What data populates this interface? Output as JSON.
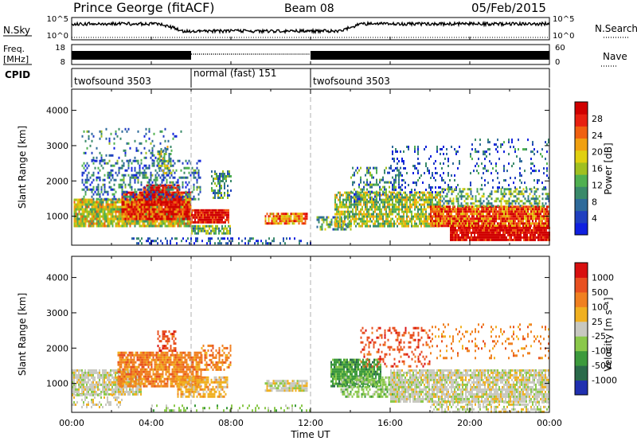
{
  "header": {
    "station": "Prince George (fitACF)",
    "beam": "Beam 08",
    "date": "05/Feb/2015"
  },
  "left_labels": {
    "nsky": "N.Sky",
    "freq": "Freq.",
    "freq_unit": "[MHz]",
    "cpid": "CPID"
  },
  "right_labels": {
    "nsearch": "N.Search",
    "nave": "Nave"
  },
  "small_axes": {
    "nsky_ticks": [
      "10^5",
      "10^0"
    ],
    "nsearch_ticks": [
      "10^5",
      "10^0"
    ],
    "freq_ticks": [
      "18",
      "8"
    ],
    "nave_ticks": [
      "60",
      "0"
    ]
  },
  "cpid_segments": [
    {
      "label": "twofsound 3503",
      "start": 0,
      "end": 6
    },
    {
      "label": "normal (fast) 151",
      "start": 6,
      "end": 12
    },
    {
      "label": "twofsound 3503",
      "start": 12,
      "end": 24
    }
  ],
  "axes": {
    "ylabel": "Slant Range [km]",
    "yticks": [
      "1000",
      "2000",
      "3000",
      "4000"
    ],
    "xlabel": "Time UT",
    "xticks": [
      "00:00",
      "04:00",
      "08:00",
      "12:00",
      "16:00",
      "20:00",
      "00:00"
    ]
  },
  "chart_data": [
    {
      "type": "heatmap",
      "title": "",
      "xlabel": "",
      "ylabel": "Slant Range [km]",
      "xlim": [
        0,
        24
      ],
      "ylim": [
        180,
        4600
      ],
      "colorbar_label": "Power [dB]",
      "colorbar_ticks": [
        "4",
        "8",
        "12",
        "16",
        "20",
        "24",
        "28"
      ],
      "colors": [
        "#1020e0",
        "#2040c0",
        "#2e6a9a",
        "#3a8a6a",
        "#50b050",
        "#a0c020",
        "#e0d010",
        "#f0a010",
        "#f06010",
        "#e82010",
        "#d00000"
      ],
      "blobs": [
        {
          "t0": 0.1,
          "t1": 6.0,
          "r0": 700,
          "r1": 1500,
          "lvl": 0.55,
          "d": 0.9
        },
        {
          "t0": 2.5,
          "t1": 6.0,
          "r0": 900,
          "r1": 1700,
          "lvl": 0.85,
          "d": 0.9
        },
        {
          "t0": 3.5,
          "t1": 5.4,
          "r0": 1300,
          "r1": 1900,
          "lvl": 0.95,
          "d": 0.85
        },
        {
          "t0": 0.5,
          "t1": 6.5,
          "r0": 1500,
          "r1": 2600,
          "lvl": 0.25,
          "d": 0.35
        },
        {
          "t0": 0.5,
          "t1": 5.5,
          "r0": 2600,
          "r1": 3500,
          "lvl": 0.25,
          "d": 0.12
        },
        {
          "t0": 4.3,
          "t1": 5.0,
          "r0": 2200,
          "r1": 3000,
          "lvl": 0.45,
          "d": 0.45
        },
        {
          "t0": 6.0,
          "t1": 7.9,
          "r0": 800,
          "r1": 1200,
          "lvl": 0.95,
          "d": 0.95
        },
        {
          "t0": 6.0,
          "t1": 8.0,
          "r0": 500,
          "r1": 750,
          "lvl": 0.4,
          "d": 0.75
        },
        {
          "t0": 7.0,
          "t1": 8.0,
          "r0": 1500,
          "r1": 2300,
          "lvl": 0.35,
          "d": 0.45
        },
        {
          "t0": 9.7,
          "t1": 11.8,
          "r0": 800,
          "r1": 1100,
          "lvl": 0.75,
          "d": 0.8
        },
        {
          "t0": 3.0,
          "t1": 12.0,
          "r0": 200,
          "r1": 400,
          "lvl": 0.15,
          "d": 0.3
        },
        {
          "t0": 12.3,
          "t1": 14.0,
          "r0": 600,
          "r1": 1000,
          "lvl": 0.35,
          "d": 0.6
        },
        {
          "t0": 13.2,
          "t1": 18.5,
          "r0": 700,
          "r1": 1700,
          "lvl": 0.5,
          "d": 0.75
        },
        {
          "t0": 14.0,
          "t1": 16.5,
          "r0": 1400,
          "r1": 2400,
          "lvl": 0.3,
          "d": 0.35
        },
        {
          "t0": 16.0,
          "t1": 19.5,
          "r0": 1700,
          "r1": 3000,
          "lvl": 0.15,
          "d": 0.18
        },
        {
          "t0": 18.0,
          "t1": 24.0,
          "r0": 700,
          "r1": 1300,
          "lvl": 0.82,
          "d": 0.95
        },
        {
          "t0": 19.0,
          "t1": 24.0,
          "r0": 300,
          "r1": 700,
          "lvl": 1.0,
          "d": 0.95
        },
        {
          "t0": 18.5,
          "t1": 24.0,
          "r0": 1300,
          "r1": 1800,
          "lvl": 0.4,
          "d": 0.45
        },
        {
          "t0": 20.0,
          "t1": 24.0,
          "r0": 1800,
          "r1": 3200,
          "lvl": 0.2,
          "d": 0.15
        }
      ]
    },
    {
      "type": "heatmap",
      "title": "",
      "xlabel": "Time UT",
      "ylabel": "Slant Range [km]",
      "xlim": [
        0,
        24
      ],
      "ylim": [
        180,
        4600
      ],
      "colorbar_label": "Velocity [m s⁻¹]",
      "colorbar_ticks": [
        "1000",
        "500",
        "100",
        "25",
        "-25",
        "-100",
        "-500",
        "-1000"
      ],
      "colors": [
        "#2030b0",
        "#2a6a4a",
        "#3c9a3c",
        "#8ac84a",
        "#c8c8c0",
        "#f0b020",
        "#f08020",
        "#e85020",
        "#d81010"
      ],
      "blobs": [
        {
          "t0": 0.0,
          "t1": 3.5,
          "r0": 700,
          "r1": 1400,
          "lvl": 4,
          "d": 0.85
        },
        {
          "t0": 0.0,
          "t1": 2.5,
          "r0": 300,
          "r1": 700,
          "lvl": 4,
          "d": 0.3
        },
        {
          "t0": 2.3,
          "t1": 6.5,
          "r0": 900,
          "r1": 1900,
          "lvl": 6,
          "d": 0.8
        },
        {
          "t0": 4.3,
          "t1": 5.2,
          "r0": 1900,
          "r1": 2500,
          "lvl": 7,
          "d": 0.5
        },
        {
          "t0": 5.3,
          "t1": 7.8,
          "r0": 600,
          "r1": 1200,
          "lvl": 5,
          "d": 0.75
        },
        {
          "t0": 6.5,
          "t1": 8.0,
          "r0": 1400,
          "r1": 2100,
          "lvl": 6,
          "d": 0.5
        },
        {
          "t0": 9.7,
          "t1": 11.8,
          "r0": 800,
          "r1": 1100,
          "lvl": 4,
          "d": 0.85
        },
        {
          "t0": 4.0,
          "t1": 12.0,
          "r0": 200,
          "r1": 400,
          "lvl": 3,
          "d": 0.2
        },
        {
          "t0": 13.0,
          "t1": 15.5,
          "r0": 900,
          "r1": 1700,
          "lvl": 2,
          "d": 0.85
        },
        {
          "t0": 13.5,
          "t1": 16.5,
          "r0": 600,
          "r1": 1200,
          "lvl": 3,
          "d": 0.55
        },
        {
          "t0": 14.5,
          "t1": 18.0,
          "r0": 1500,
          "r1": 2600,
          "lvl": 7,
          "d": 0.25
        },
        {
          "t0": 16.0,
          "t1": 24.0,
          "r0": 500,
          "r1": 1400,
          "lvl": 4,
          "d": 0.85
        },
        {
          "t0": 18.0,
          "t1": 24.0,
          "r0": 200,
          "r1": 500,
          "lvl": 4,
          "d": 0.5
        },
        {
          "t0": 18.0,
          "t1": 24.0,
          "r0": 1700,
          "r1": 2700,
          "lvl": 6,
          "d": 0.15
        }
      ]
    }
  ]
}
